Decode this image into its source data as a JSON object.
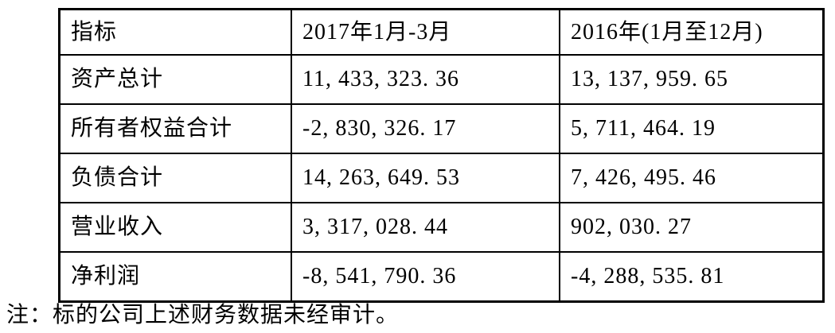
{
  "page": {
    "background_color": "#ffffff",
    "text_color": "#000000",
    "border_color": "#000000"
  },
  "table": {
    "columns": [
      "指标",
      "2017年1月-3月",
      "2016年(1月至12月)"
    ],
    "rows": [
      {
        "label": "资产总计",
        "values": [
          "11, 433, 323. 36",
          "13, 137, 959. 65"
        ]
      },
      {
        "label": "所有者权益合计",
        "values": [
          "-2, 830, 326. 17",
          "5, 711, 464. 19"
        ]
      },
      {
        "label": "负债合计",
        "values": [
          "14, 263, 649. 53",
          "7, 426, 495. 46"
        ]
      },
      {
        "label": "营业收入",
        "values": [
          "3, 317, 028. 44",
          "902, 030. 27"
        ]
      },
      {
        "label": "净利润",
        "values": [
          "-8, 541, 790. 36",
          "-4, 288, 535. 81"
        ]
      }
    ]
  },
  "note": "注：标的公司上述财务数据未经审计。"
}
